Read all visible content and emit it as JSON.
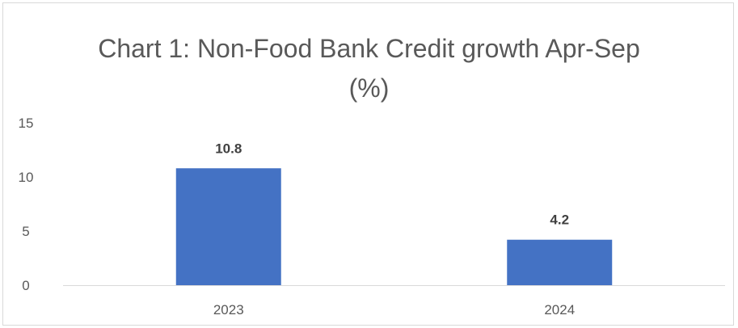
{
  "chart_data": {
    "type": "bar",
    "title_line1": "Chart 1: Non-Food Bank Credit growth Apr-Sep",
    "title_line2": "(%)",
    "categories": [
      "2023",
      "2024"
    ],
    "values": [
      10.8,
      4.2
    ],
    "data_labels": [
      "10.8",
      "4.2"
    ],
    "y_ticks": [
      0,
      5,
      10,
      15
    ],
    "y_tick_labels": [
      "0",
      "5",
      "10",
      "15"
    ],
    "ylim": [
      0,
      15
    ],
    "xlabel": "",
    "ylabel": "",
    "grid": false,
    "legend": "none",
    "bar_color": "#4472c4"
  }
}
